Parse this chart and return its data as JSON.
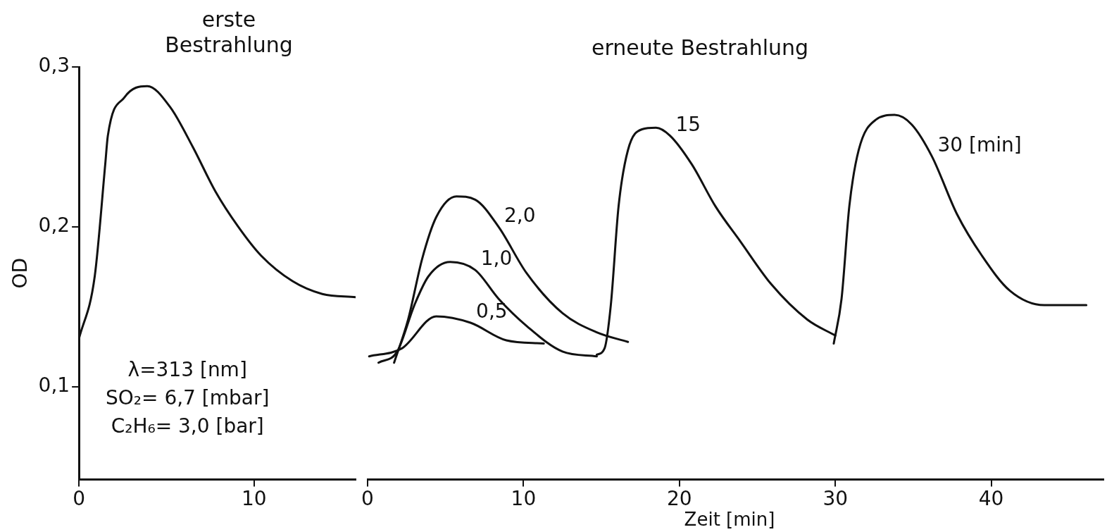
{
  "chart_data": [
    {
      "type": "line",
      "title": "erste Bestrahlung",
      "ylabel": "OD",
      "legend": false,
      "grid": false,
      "marker": "none",
      "line_style": "solid",
      "xlim": [
        0,
        15.8
      ],
      "xticks": [
        0,
        10
      ],
      "ylim": [
        0.042,
        0.3
      ],
      "yticks": [
        {
          "value": 0.1,
          "label": "0,1"
        },
        {
          "value": 0.2,
          "label": "0,2"
        },
        {
          "value": 0.3,
          "label": "0,3"
        }
      ],
      "annotations": [
        "λ=313 [nm]",
        "SO₂= 6,7 [mbar]",
        "C₂H₆= 3,0 [bar]"
      ],
      "series": [
        {
          "color": "#111111",
          "x": [
            0,
            0.9,
            1.5,
            1.65,
            2.6,
            3.9,
            5.2,
            6.5,
            7.8,
            9.1,
            10.4,
            12.2,
            13.9,
            15.8
          ],
          "values": [
            0.13,
            0.169,
            0.239,
            0.257,
            0.281,
            0.288,
            0.275,
            0.25,
            0.222,
            0.2,
            0.182,
            0.166,
            0.158,
            0.156
          ]
        }
      ]
    },
    {
      "type": "line",
      "title": "erneute Bestrahlung",
      "xlabel": "Zeit [min]",
      "legend": false,
      "grid": false,
      "marker": "none",
      "line_style": "solid",
      "tick_labels": "x",
      "xlim": [
        0,
        47.2
      ],
      "xticks": [
        0,
        10,
        20,
        30,
        40
      ],
      "ylim": [
        0.042,
        0.3
      ],
      "series": [
        {
          "name": "0,5",
          "color": "#111111",
          "x": [
            0.1,
            2.2,
            4.4,
            6.6,
            8.9,
            11.3
          ],
          "values": [
            0.119,
            0.124,
            0.144,
            0.14,
            0.129,
            0.127
          ]
        },
        {
          "name": "1,0",
          "color": "#111111",
          "x": [
            0.7,
            1.9,
            3.0,
            3.9,
            5.3,
            6.9,
            8.4,
            10.2,
            12.5,
            14.7
          ],
          "values": [
            0.115,
            0.122,
            0.151,
            0.169,
            0.178,
            0.173,
            0.155,
            0.138,
            0.122,
            0.119
          ]
        },
        {
          "name": "2,0",
          "color": "#111111",
          "x": [
            1.7,
            2.6,
            3.5,
            4.4,
            5.7,
            6.9,
            8.4,
            10.2,
            12.5,
            14.7,
            16.7
          ],
          "values": [
            0.115,
            0.142,
            0.18,
            0.206,
            0.219,
            0.217,
            0.2,
            0.171,
            0.146,
            0.134,
            0.128
          ]
        },
        {
          "name": "15",
          "color": "#111111",
          "x": [
            14.7,
            15.2,
            15.6,
            16.1,
            16.7,
            17.6,
            18.5,
            19.4,
            20.8,
            22.3,
            23.9,
            25.9,
            28.2,
            30.0
          ],
          "values": [
            0.12,
            0.124,
            0.151,
            0.213,
            0.248,
            0.261,
            0.262,
            0.257,
            0.239,
            0.213,
            0.191,
            0.164,
            0.142,
            0.132
          ]
        },
        {
          "name": "30 [min]",
          "color": "#111111",
          "x": [
            29.9,
            30.4,
            30.9,
            31.5,
            32.6,
            33.8,
            34.9,
            36.2,
            37.8,
            39.4,
            41.2,
            43.4,
            46.1
          ],
          "values": [
            0.127,
            0.155,
            0.213,
            0.248,
            0.267,
            0.27,
            0.264,
            0.244,
            0.208,
            0.182,
            0.16,
            0.151,
            0.151
          ]
        }
      ]
    }
  ]
}
